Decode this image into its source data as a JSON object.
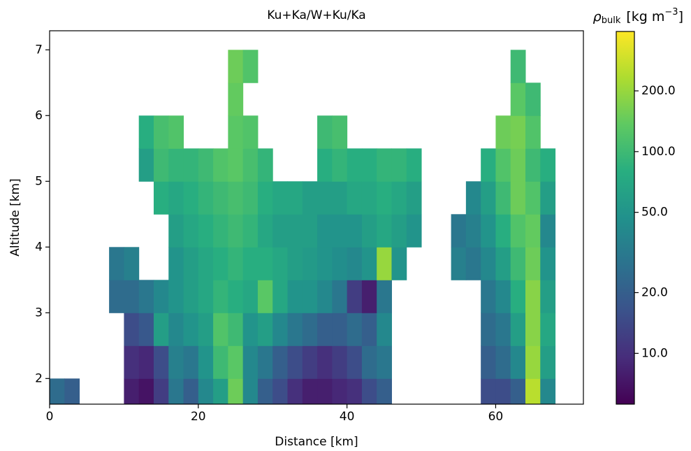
{
  "chart_data": {
    "type": "heatmap",
    "title": "Ku+Ka/W+Ku/Ka",
    "xlabel": "Distance [km]",
    "ylabel": "Altitude [km]",
    "xlim": [
      0,
      71.8
    ],
    "ylim": [
      1.61,
      7.29
    ],
    "xticks": [
      0,
      20,
      40,
      60
    ],
    "yticks": [
      2,
      3,
      4,
      5,
      6,
      7
    ],
    "x": [
      0,
      2,
      4,
      6,
      8,
      10,
      12,
      14,
      16,
      18,
      20,
      22,
      24,
      26,
      28,
      30,
      32,
      34,
      36,
      38,
      40,
      42,
      44,
      46,
      48,
      50,
      52,
      54,
      56,
      58,
      60,
      62,
      64,
      66,
      68,
      70,
      72
    ],
    "y": [
      1.61,
      2.0,
      2.5,
      3.0,
      3.5,
      4.0,
      4.5,
      5.0,
      5.5,
      6.0,
      6.5,
      7.0
    ],
    "z": [
      [
        25,
        20,
        null,
        null,
        null,
        8,
        7,
        12,
        30,
        20,
        40,
        60,
        150,
        40,
        20,
        15,
        10,
        8,
        8,
        9,
        10,
        15,
        20,
        null,
        null,
        null,
        null,
        null,
        null,
        15,
        15,
        20,
        250,
        40,
        null,
        null
      ],
      [
        null,
        null,
        null,
        null,
        null,
        10,
        9,
        15,
        35,
        30,
        50,
        100,
        130,
        40,
        30,
        20,
        15,
        12,
        10,
        12,
        15,
        25,
        30,
        null,
        null,
        null,
        null,
        null,
        null,
        20,
        25,
        40,
        200,
        60,
        null,
        null
      ],
      [
        null,
        null,
        null,
        null,
        null,
        15,
        18,
        60,
        40,
        50,
        60,
        120,
        100,
        50,
        60,
        40,
        30,
        25,
        20,
        20,
        25,
        20,
        40,
        null,
        null,
        null,
        null,
        null,
        null,
        25,
        30,
        60,
        180,
        70,
        null,
        null
      ],
      [
        null,
        null,
        null,
        null,
        25,
        25,
        30,
        40,
        50,
        60,
        70,
        90,
        80,
        70,
        130,
        70,
        50,
        50,
        40,
        30,
        12,
        8,
        30,
        null,
        null,
        null,
        null,
        null,
        null,
        30,
        40,
        80,
        180,
        60,
        null,
        null
      ],
      [
        null,
        null,
        null,
        null,
        30,
        35,
        null,
        null,
        50,
        60,
        70,
        80,
        90,
        80,
        80,
        70,
        60,
        55,
        50,
        45,
        40,
        50,
        200,
        50,
        null,
        null,
        null,
        35,
        30,
        40,
        60,
        100,
        150,
        50,
        null,
        null
      ],
      [
        null,
        null,
        null,
        null,
        null,
        null,
        null,
        null,
        60,
        70,
        80,
        90,
        100,
        90,
        70,
        60,
        60,
        60,
        50,
        50,
        50,
        60,
        70,
        60,
        50,
        null,
        null,
        30,
        35,
        50,
        80,
        120,
        140,
        40,
        null,
        null
      ],
      [
        null,
        null,
        null,
        null,
        null,
        null,
        null,
        80,
        70,
        80,
        90,
        100,
        110,
        100,
        80,
        70,
        70,
        60,
        60,
        60,
        70,
        70,
        80,
        70,
        60,
        null,
        null,
        null,
        40,
        60,
        100,
        150,
        120,
        60,
        null,
        null
      ],
      [
        null,
        null,
        null,
        null,
        null,
        null,
        60,
        100,
        90,
        90,
        100,
        120,
        130,
        110,
        90,
        null,
        null,
        null,
        80,
        90,
        80,
        80,
        90,
        90,
        80,
        null,
        null,
        null,
        null,
        80,
        120,
        150,
        100,
        80,
        null,
        null
      ],
      [
        null,
        null,
        null,
        null,
        null,
        null,
        80,
        110,
        120,
        null,
        null,
        null,
        130,
        120,
        null,
        null,
        null,
        null,
        100,
        110,
        null,
        null,
        null,
        null,
        null,
        null,
        null,
        null,
        null,
        null,
        150,
        160,
        120,
        null,
        null,
        null
      ],
      [
        null,
        null,
        null,
        null,
        null,
        null,
        null,
        null,
        null,
        null,
        null,
        null,
        140,
        null,
        null,
        null,
        null,
        null,
        null,
        null,
        null,
        null,
        null,
        null,
        null,
        null,
        null,
        null,
        null,
        null,
        null,
        130,
        100,
        null,
        null,
        null
      ],
      [
        null,
        null,
        null,
        null,
        null,
        null,
        null,
        null,
        null,
        null,
        null,
        null,
        150,
        120,
        null,
        null,
        null,
        null,
        null,
        null,
        null,
        null,
        null,
        null,
        null,
        null,
        null,
        null,
        null,
        null,
        null,
        100,
        null,
        null,
        null,
        null
      ]
    ],
    "colormap": [
      "#440154",
      "#472d7b",
      "#3b528b",
      "#2c728e",
      "#21918c",
      "#28ae80",
      "#5ec962",
      "#addc30",
      "#fde725"
    ],
    "clim": [
      5.6,
      394
    ],
    "clog": true,
    "cticks": [
      {
        "value": 10,
        "label": "10.0"
      },
      {
        "value": 20,
        "label": "20.0"
      },
      {
        "value": 50,
        "label": "50.0"
      },
      {
        "value": 100,
        "label": "100.0"
      },
      {
        "value": 200,
        "label": "200.0"
      }
    ],
    "colorbar_label": {
      "symbol": "ρ",
      "subscript": "bulk",
      "unit": "[kg m",
      "exponent": "−3",
      "close": "]"
    }
  }
}
